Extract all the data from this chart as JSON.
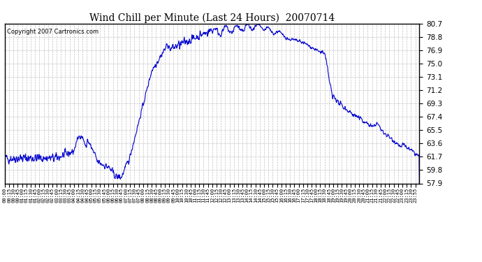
{
  "title": "Wind Chill per Minute (Last 24 Hours)  20070714",
  "copyright": "Copyright 2007 Cartronics.com",
  "line_color": "#0000cc",
  "bg_color": "#ffffff",
  "plot_bg_color": "#ffffff",
  "grid_color": "#aaaaaa",
  "yticks": [
    57.9,
    59.8,
    61.7,
    63.6,
    65.5,
    67.4,
    69.3,
    71.2,
    73.1,
    75.0,
    76.9,
    78.8,
    80.7
  ],
  "ylim": [
    57.9,
    80.7
  ],
  "xtick_labels": [
    "00:00",
    "00:15",
    "00:30",
    "00:45",
    "01:00",
    "01:15",
    "01:30",
    "01:45",
    "02:00",
    "02:15",
    "02:30",
    "02:45",
    "03:00",
    "03:15",
    "03:30",
    "03:45",
    "04:00",
    "04:15",
    "04:30",
    "04:45",
    "05:00",
    "05:15",
    "05:30",
    "05:45",
    "06:00",
    "06:15",
    "06:30",
    "06:45",
    "07:00",
    "07:15",
    "07:30",
    "07:45",
    "08:00",
    "08:15",
    "08:30",
    "08:45",
    "09:00",
    "09:15",
    "09:30",
    "09:45",
    "10:00",
    "10:15",
    "10:30",
    "10:45",
    "11:00",
    "11:15",
    "11:30",
    "11:45",
    "12:00",
    "12:15",
    "12:30",
    "12:45",
    "13:00",
    "13:15",
    "13:30",
    "13:45",
    "14:00",
    "14:15",
    "14:30",
    "14:45",
    "15:00",
    "15:15",
    "15:30",
    "15:45",
    "16:00",
    "16:15",
    "16:30",
    "16:45",
    "17:00",
    "17:15",
    "17:30",
    "17:45",
    "18:00",
    "18:15",
    "18:30",
    "18:45",
    "19:00",
    "19:15",
    "19:30",
    "19:45",
    "20:00",
    "20:15",
    "20:30",
    "20:45",
    "21:00",
    "21:15",
    "21:30",
    "21:45",
    "22:00",
    "22:15",
    "22:30",
    "22:45",
    "23:00",
    "23:15",
    "23:30",
    "23:55"
  ]
}
